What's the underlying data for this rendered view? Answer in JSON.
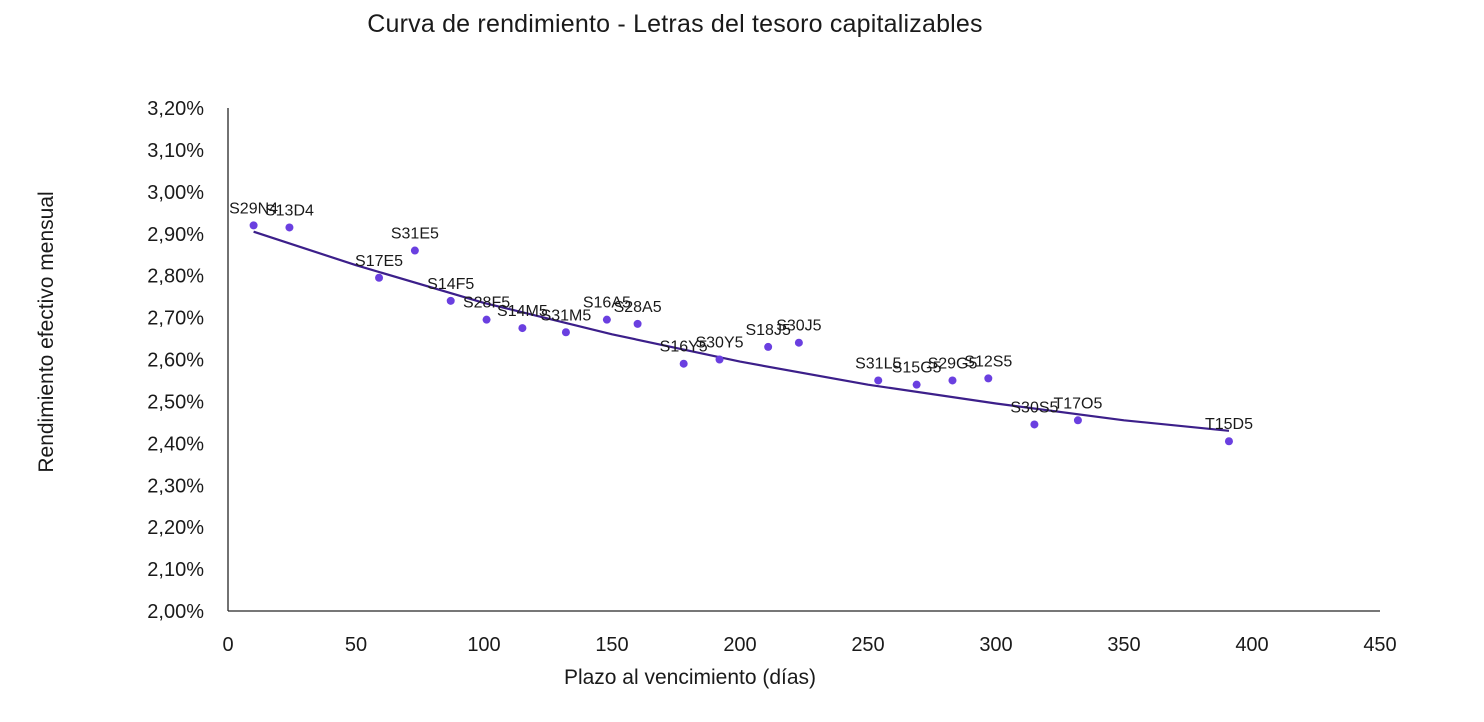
{
  "chart_data": {
    "type": "scatter",
    "title": "Curva de rendimiento - Letras del tesoro capitalizables",
    "xlabel": "Plazo al vencimiento (días)",
    "ylabel": "Rendimiento efectivo mensual",
    "xlim": [
      0,
      450
    ],
    "ylim": [
      2.0,
      3.2
    ],
    "x_ticks": [
      0,
      50,
      100,
      150,
      200,
      250,
      300,
      350,
      400,
      450
    ],
    "y_ticks": [
      2.0,
      2.1,
      2.2,
      2.3,
      2.4,
      2.5,
      2.6,
      2.7,
      2.8,
      2.9,
      3.0,
      3.1,
      3.2
    ],
    "y_tick_labels": [
      "2,00%",
      "2,10%",
      "2,20%",
      "2,30%",
      "2,40%",
      "2,50%",
      "2,60%",
      "2,70%",
      "2,80%",
      "2,90%",
      "3,00%",
      "3,10%",
      "3,20%"
    ],
    "grid": false,
    "point_color": "#6a3fe0",
    "trendline_color": "#3c1f8a",
    "points": [
      {
        "label": "S29N4",
        "x": 10,
        "y": 2.92
      },
      {
        "label": "S13D4",
        "x": 24,
        "y": 2.915
      },
      {
        "label": "S31E5",
        "x": 73,
        "y": 2.86
      },
      {
        "label": "S17E5",
        "x": 59,
        "y": 2.795
      },
      {
        "label": "S14F5",
        "x": 87,
        "y": 2.74
      },
      {
        "label": "S28F5",
        "x": 101,
        "y": 2.695
      },
      {
        "label": "S14M5",
        "x": 115,
        "y": 2.675
      },
      {
        "label": "S31M5",
        "x": 132,
        "y": 2.665
      },
      {
        "label": "S16A5",
        "x": 148,
        "y": 2.695
      },
      {
        "label": "S28A5",
        "x": 160,
        "y": 2.685
      },
      {
        "label": "S16Y5",
        "x": 178,
        "y": 2.59
      },
      {
        "label": "S30Y5",
        "x": 192,
        "y": 2.6
      },
      {
        "label": "S18J5",
        "x": 211,
        "y": 2.63
      },
      {
        "label": "S30J5",
        "x": 223,
        "y": 2.64
      },
      {
        "label": "S31L5",
        "x": 254,
        "y": 2.55
      },
      {
        "label": "S15G5",
        "x": 269,
        "y": 2.54
      },
      {
        "label": "S29G5",
        "x": 283,
        "y": 2.55
      },
      {
        "label": "S12S5",
        "x": 297,
        "y": 2.555
      },
      {
        "label": "S30S5",
        "x": 315,
        "y": 2.445
      },
      {
        "label": "T17O5",
        "x": 332,
        "y": 2.455
      },
      {
        "label": "T15D5",
        "x": 391,
        "y": 2.405
      }
    ],
    "trendline": {
      "x": [
        10,
        50,
        100,
        150,
        200,
        250,
        300,
        350,
        391
      ],
      "y": [
        2.905,
        2.825,
        2.735,
        2.66,
        2.595,
        2.54,
        2.495,
        2.455,
        2.43
      ]
    }
  }
}
